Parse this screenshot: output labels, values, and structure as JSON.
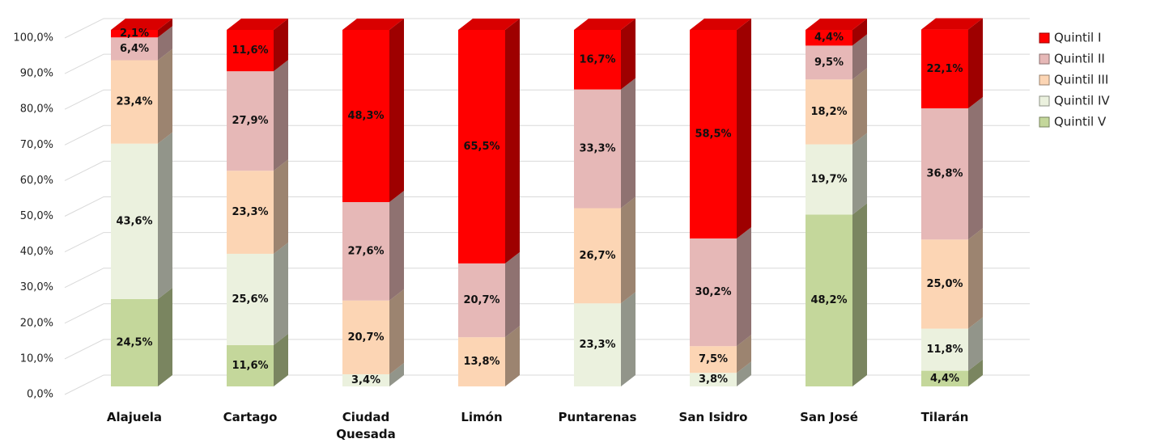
{
  "chart_data": {
    "type": "bar",
    "stacked": true,
    "three_d": true,
    "categories": [
      "Alajuela",
      "Cartago",
      "Ciudad Quesada",
      "Limón",
      "Puntarenas",
      "San Isidro",
      "San José",
      "Tilarán"
    ],
    "series": [
      {
        "name": "Quintil I",
        "color": "#ff0000",
        "values": [
          2.1,
          11.6,
          48.3,
          65.5,
          16.7,
          58.5,
          4.4,
          22.1
        ],
        "value_labels": [
          "2,1%",
          "11,6%",
          "48,3%",
          "65,5%",
          "16,7%",
          "58,5%",
          "4,4%",
          "22,1%"
        ]
      },
      {
        "name": "Quintil II",
        "color": "#e6b8b7",
        "values": [
          6.4,
          27.9,
          27.6,
          20.7,
          33.3,
          30.2,
          9.5,
          36.8
        ],
        "value_labels": [
          "6,4%",
          "27,9%",
          "27,6%",
          "20,7%",
          "33,3%",
          "30,2%",
          "9,5%",
          "36,8%"
        ]
      },
      {
        "name": "Quintil III",
        "color": "#fcd5b4",
        "values": [
          23.4,
          23.3,
          20.7,
          13.8,
          26.7,
          7.5,
          18.2,
          25.0
        ],
        "value_labels": [
          "23,4%",
          "23,3%",
          "20,7%",
          "13,8%",
          "26,7%",
          "7,5%",
          "18,2%",
          "25,0%"
        ]
      },
      {
        "name": "Quintil IV",
        "color": "#ebf1de",
        "values": [
          43.6,
          25.6,
          3.4,
          null,
          23.3,
          3.8,
          19.7,
          11.8
        ],
        "value_labels": [
          "43,6%",
          "25,6%",
          "3,4%",
          null,
          "23,3%",
          "3,8%",
          "19,7%",
          "11,8%"
        ]
      },
      {
        "name": "Quintil V",
        "color": "#c4d79b",
        "values": [
          24.5,
          11.6,
          null,
          null,
          null,
          null,
          48.2,
          4.4
        ],
        "value_labels": [
          "24,5%",
          "11,6%",
          null,
          null,
          null,
          null,
          "48,2%",
          "4,4%"
        ]
      }
    ],
    "ylim": [
      0,
      100
    ],
    "yticks": [
      {
        "value": 0,
        "label": "0,0%"
      },
      {
        "value": 10,
        "label": "10,0%"
      },
      {
        "value": 20,
        "label": "20,0%"
      },
      {
        "value": 30,
        "label": "30,0%"
      },
      {
        "value": 40,
        "label": "40,0%"
      },
      {
        "value": 50,
        "label": "50,0%"
      },
      {
        "value": 60,
        "label": "60,0%"
      },
      {
        "value": 70,
        "label": "70,0%"
      },
      {
        "value": 80,
        "label": "80,0%"
      },
      {
        "value": 90,
        "label": "90,0%"
      },
      {
        "value": 100,
        "label": "100,0%"
      }
    ],
    "grid": true,
    "legend": "right"
  }
}
